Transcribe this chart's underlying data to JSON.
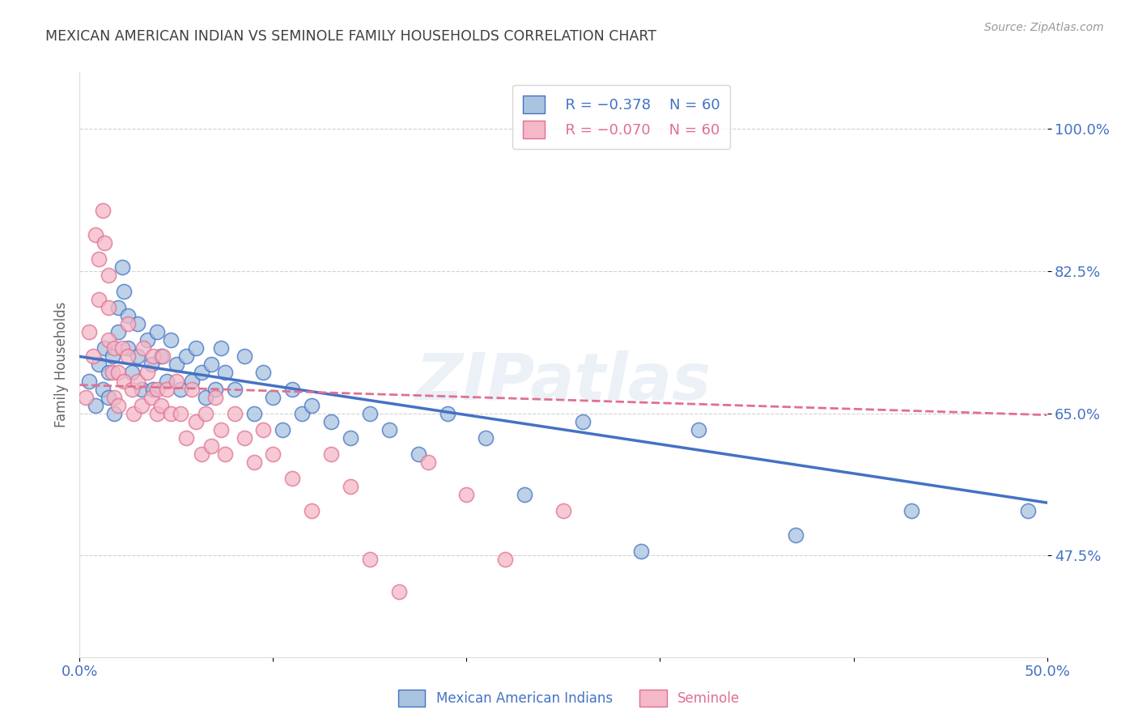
{
  "title": "MEXICAN AMERICAN INDIAN VS SEMINOLE FAMILY HOUSEHOLDS CORRELATION CHART",
  "source": "Source: ZipAtlas.com",
  "ylabel": "Family Households",
  "ytick_labels": [
    "100.0%",
    "82.5%",
    "65.0%",
    "47.5%"
  ],
  "ytick_values": [
    1.0,
    0.825,
    0.65,
    0.475
  ],
  "xlim": [
    0.0,
    0.5
  ],
  "ylim": [
    0.35,
    1.07
  ],
  "legend_blue_r": "R = −0.378",
  "legend_blue_n": "N = 60",
  "legend_pink_r": "R = −0.070",
  "legend_pink_n": "N = 60",
  "blue_color": "#a8c4e0",
  "blue_line_color": "#4472c4",
  "pink_color": "#f4b8c8",
  "pink_line_color": "#e07090",
  "blue_scatter_x": [
    0.005,
    0.008,
    0.01,
    0.012,
    0.013,
    0.015,
    0.015,
    0.017,
    0.018,
    0.02,
    0.02,
    0.022,
    0.023,
    0.025,
    0.025,
    0.027,
    0.03,
    0.03,
    0.032,
    0.035,
    0.037,
    0.038,
    0.04,
    0.042,
    0.045,
    0.047,
    0.05,
    0.052,
    0.055,
    0.058,
    0.06,
    0.063,
    0.065,
    0.068,
    0.07,
    0.073,
    0.075,
    0.08,
    0.085,
    0.09,
    0.095,
    0.1,
    0.105,
    0.11,
    0.115,
    0.12,
    0.13,
    0.14,
    0.15,
    0.16,
    0.175,
    0.19,
    0.21,
    0.23,
    0.26,
    0.29,
    0.32,
    0.37,
    0.43,
    0.49
  ],
  "blue_scatter_y": [
    0.69,
    0.66,
    0.71,
    0.68,
    0.73,
    0.7,
    0.67,
    0.72,
    0.65,
    0.78,
    0.75,
    0.83,
    0.8,
    0.77,
    0.73,
    0.7,
    0.76,
    0.72,
    0.68,
    0.74,
    0.71,
    0.68,
    0.75,
    0.72,
    0.69,
    0.74,
    0.71,
    0.68,
    0.72,
    0.69,
    0.73,
    0.7,
    0.67,
    0.71,
    0.68,
    0.73,
    0.7,
    0.68,
    0.72,
    0.65,
    0.7,
    0.67,
    0.63,
    0.68,
    0.65,
    0.66,
    0.64,
    0.62,
    0.65,
    0.63,
    0.6,
    0.65,
    0.62,
    0.55,
    0.64,
    0.48,
    0.63,
    0.5,
    0.53,
    0.53
  ],
  "pink_scatter_x": [
    0.003,
    0.005,
    0.007,
    0.008,
    0.01,
    0.01,
    0.012,
    0.013,
    0.015,
    0.015,
    0.015,
    0.017,
    0.018,
    0.018,
    0.02,
    0.02,
    0.022,
    0.023,
    0.025,
    0.025,
    0.027,
    0.028,
    0.03,
    0.032,
    0.033,
    0.035,
    0.037,
    0.038,
    0.04,
    0.04,
    0.042,
    0.043,
    0.045,
    0.047,
    0.05,
    0.052,
    0.055,
    0.058,
    0.06,
    0.063,
    0.065,
    0.068,
    0.07,
    0.073,
    0.075,
    0.08,
    0.085,
    0.09,
    0.095,
    0.1,
    0.11,
    0.12,
    0.13,
    0.14,
    0.15,
    0.165,
    0.18,
    0.2,
    0.22,
    0.25
  ],
  "pink_scatter_y": [
    0.67,
    0.75,
    0.72,
    0.87,
    0.84,
    0.79,
    0.9,
    0.86,
    0.82,
    0.78,
    0.74,
    0.7,
    0.67,
    0.73,
    0.7,
    0.66,
    0.73,
    0.69,
    0.76,
    0.72,
    0.68,
    0.65,
    0.69,
    0.66,
    0.73,
    0.7,
    0.67,
    0.72,
    0.68,
    0.65,
    0.66,
    0.72,
    0.68,
    0.65,
    0.69,
    0.65,
    0.62,
    0.68,
    0.64,
    0.6,
    0.65,
    0.61,
    0.67,
    0.63,
    0.6,
    0.65,
    0.62,
    0.59,
    0.63,
    0.6,
    0.57,
    0.53,
    0.6,
    0.56,
    0.47,
    0.43,
    0.59,
    0.55,
    0.47,
    0.53
  ],
  "blue_line_x": [
    0.0,
    0.5
  ],
  "blue_line_y": [
    0.72,
    0.54
  ],
  "pink_line_x": [
    0.0,
    0.5
  ],
  "pink_line_y": [
    0.685,
    0.648
  ],
  "watermark": "ZIPatlas",
  "background_color": "#ffffff",
  "grid_color": "#cccccc",
  "tick_color": "#4472c4",
  "title_color": "#404040",
  "axis_label_color": "#666666"
}
